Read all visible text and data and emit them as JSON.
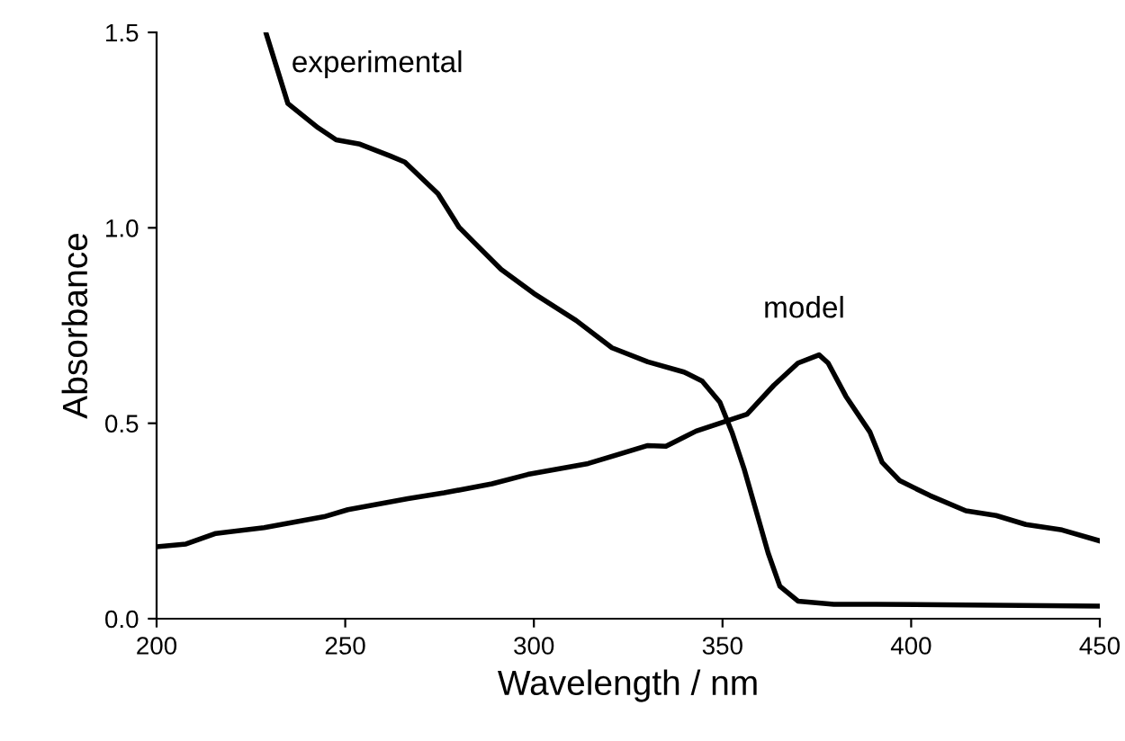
{
  "chart_data": {
    "type": "line",
    "xlabel": "Wavelength / nm",
    "ylabel": "Absorbance",
    "xlim": [
      200,
      450
    ],
    "ylim": [
      0,
      1.5
    ],
    "xticks": [
      200,
      250,
      300,
      350,
      400,
      450
    ],
    "yticks": [
      {
        "value": 0,
        "label": "0.0"
      },
      {
        "value": 0.5,
        "label": "0.5"
      },
      {
        "value": 1.0,
        "label": "1.0"
      },
      {
        "value": 1.5,
        "label": "1.5"
      }
    ],
    "grid": false,
    "marker": "none",
    "line_style": "solid",
    "series": [
      {
        "name": "experimental",
        "color": "#000000",
        "x": [
          229.1,
          234.8,
          242.8,
          247.6,
          253.9,
          261.9,
          265.8,
          274.6,
          280.2,
          284.1,
          291.3,
          300.0,
          311.2,
          320.7,
          330.2,
          339.8,
          344.6,
          349.3,
          352.5,
          355.7,
          358.9,
          362.1,
          365.2,
          370.0,
          379.5,
          390.7,
          450
        ],
        "values": [
          1.495,
          1.318,
          1.256,
          1.225,
          1.214,
          1.184,
          1.168,
          1.087,
          1.001,
          0.963,
          0.894,
          0.832,
          0.763,
          0.693,
          0.657,
          0.631,
          0.608,
          0.554,
          0.477,
          0.384,
          0.276,
          0.168,
          0.083,
          0.045,
          0.037,
          0.037,
          0.032
        ]
      },
      {
        "name": "model",
        "color": "#000000",
        "x": [
          200,
          207.8,
          215.7,
          228.5,
          244.4,
          250.7,
          266.6,
          276.2,
          288.9,
          298.4,
          314.4,
          330.2,
          335.0,
          343.0,
          356.5,
          363.6,
          370.0,
          375.6,
          378.0,
          382.7,
          389.1,
          392.3,
          397.0,
          405.0,
          414.5,
          422.5,
          430.4,
          440.0,
          450
        ],
        "values": [
          0.184,
          0.191,
          0.218,
          0.233,
          0.261,
          0.279,
          0.307,
          0.322,
          0.345,
          0.369,
          0.397,
          0.443,
          0.441,
          0.48,
          0.523,
          0.597,
          0.654,
          0.675,
          0.654,
          0.569,
          0.477,
          0.4,
          0.353,
          0.315,
          0.276,
          0.264,
          0.241,
          0.227,
          0.199
        ]
      }
    ]
  }
}
